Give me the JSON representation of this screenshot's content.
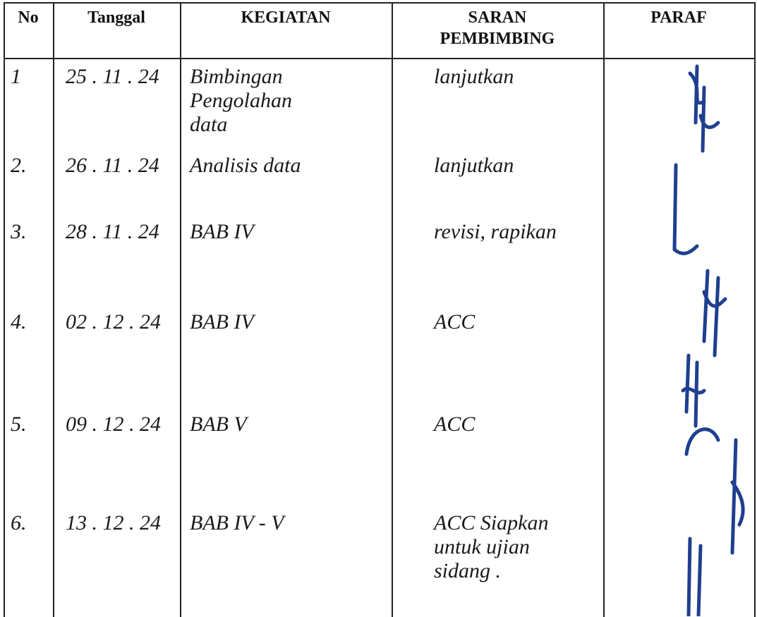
{
  "header": {
    "columns": [
      "No",
      "Tanggal",
      "KEGIATAN",
      "SARAN\nPEMBIMBING",
      "PARAF"
    ]
  },
  "table": {
    "rows": [
      [
        "1",
        "25 . 11 . 24",
        "Bimbingan Pengolahan\ndata",
        "lanjutkan"
      ],
      [
        "2.",
        "26 . 11 . 24",
        "Analisis data",
        "lanjutkan"
      ],
      [
        "3.",
        "28 . 11 . 24",
        "BAB IV",
        "revisi, rapikan"
      ],
      [
        "4.",
        "02 . 12 . 24",
        "BAB IV",
        "ACC"
      ],
      [
        "5.",
        "09 . 12 . 24",
        "BAB V",
        "ACC"
      ],
      [
        "6.",
        "13 . 12 . 24",
        "BAB IV - V",
        "ACC Siapkan\nuntuk ujian\nsidang ."
      ]
    ]
  }
}
